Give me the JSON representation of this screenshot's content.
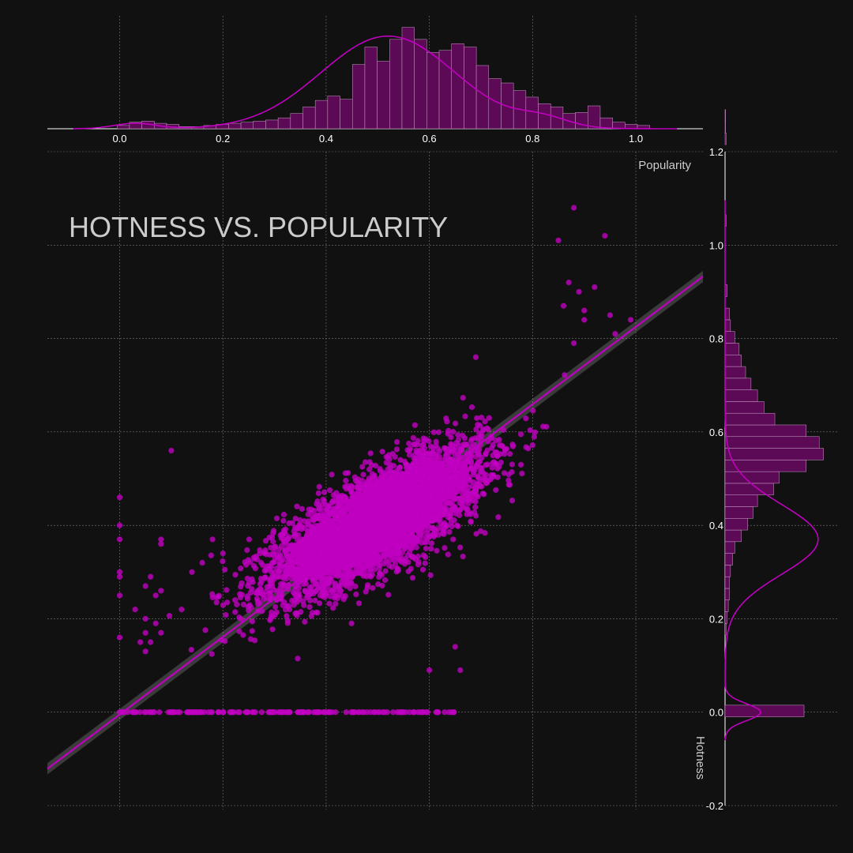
{
  "colors": {
    "background": "#111111",
    "accent": "#c000c0",
    "bar_fill": "#5c0a55",
    "grid": "#7a7a7a"
  },
  "chart_data": {
    "type": "scatter",
    "title": "HOTNESS VS. POPULARITY",
    "xlabel": "Popularity",
    "ylabel": "Hotness",
    "xlim": [
      -0.14,
      1.13
    ],
    "ylim": [
      -0.2,
      1.2
    ],
    "xticks": [
      "0.0",
      "0.2",
      "0.4",
      "0.6",
      "0.8",
      "1.0"
    ],
    "yticks": [
      "-0.2",
      "0.0",
      "0.2",
      "0.4",
      "0.6",
      "0.8",
      "1.0",
      "1.2"
    ],
    "grid": true,
    "regression": {
      "slope": 0.83,
      "intercept": -0.005
    },
    "cluster": {
      "center_x": 0.5,
      "center_y": 0.41,
      "sd_x": 0.1,
      "sd_y": 0.075,
      "correlation": 0.75,
      "count": 5000
    },
    "zero_hotness_points_x_range": [
      0.0,
      0.65
    ],
    "outliers": [
      [
        0.88,
        1.08
      ],
      [
        0.94,
        1.02
      ],
      [
        0.85,
        1.01
      ],
      [
        0.87,
        0.92
      ],
      [
        0.92,
        0.91
      ],
      [
        0.89,
        0.9
      ],
      [
        0.99,
        0.84
      ],
      [
        0.9,
        0.86
      ],
      [
        0.95,
        0.85
      ],
      [
        0.86,
        0.87
      ],
      [
        0.9,
        0.84
      ],
      [
        0.96,
        0.81
      ],
      [
        0.88,
        0.79
      ],
      [
        0.69,
        0.76
      ],
      [
        0.1,
        0.56
      ],
      [
        0.0,
        0.46
      ],
      [
        0.0,
        0.4
      ],
      [
        0.0,
        0.37
      ],
      [
        0.08,
        0.37
      ],
      [
        0.08,
        0.36
      ],
      [
        0.0,
        0.3
      ],
      [
        0.0,
        0.29
      ],
      [
        0.0,
        0.25
      ],
      [
        0.0,
        0.16
      ],
      [
        0.05,
        0.17
      ],
      [
        0.06,
        0.15
      ],
      [
        0.04,
        0.15
      ],
      [
        0.03,
        0.22
      ],
      [
        0.07,
        0.25
      ],
      [
        0.08,
        0.26
      ],
      [
        0.05,
        0.27
      ],
      [
        0.06,
        0.29
      ],
      [
        0.12,
        0.22
      ],
      [
        0.05,
        0.2
      ],
      [
        0.07,
        0.19
      ],
      [
        0.08,
        0.17
      ],
      [
        0.05,
        0.13
      ],
      [
        0.14,
        0.3
      ],
      [
        0.16,
        0.32
      ],
      [
        0.18,
        0.37
      ],
      [
        0.2,
        0.34
      ],
      [
        0.6,
        0.09
      ],
      [
        0.66,
        0.09
      ],
      [
        0.65,
        0.14
      ]
    ],
    "histogram_x": {
      "bin_start": -0.005,
      "bin_width": 0.024,
      "counts": [
        0.03,
        0.06,
        0.07,
        0.05,
        0.04,
        0.02,
        0.02,
        0.03,
        0.04,
        0.05,
        0.06,
        0.07,
        0.08,
        0.1,
        0.14,
        0.2,
        0.26,
        0.3,
        0.27,
        0.59,
        0.75,
        0.62,
        0.82,
        0.93,
        0.82,
        0.7,
        0.72,
        0.78,
        0.75,
        0.58,
        0.46,
        0.42,
        0.35,
        0.29,
        0.23,
        0.2,
        0.14,
        0.15,
        0.21,
        0.1,
        0.06,
        0.04,
        0.03
      ]
    },
    "histogram_y": {
      "bin_start": -0.01,
      "bin_width": 0.025,
      "counts": [
        0.73,
        0,
        0,
        0,
        0,
        0,
        0,
        0.01,
        0.02,
        0.03,
        0.04,
        0.04,
        0.05,
        0.07,
        0.09,
        0.15,
        0.21,
        0.26,
        0.3,
        0.45,
        0.5,
        0.75,
        0.91,
        0.87,
        0.75,
        0.46,
        0.36,
        0.3,
        0.24,
        0.19,
        0.15,
        0.13,
        0.09,
        0.05,
        0.04,
        0,
        0.02,
        0,
        0,
        0,
        0,
        0,
        0.01,
        0,
        0,
        0,
        0,
        0,
        0,
        0.01,
        0.005,
        0.005
      ]
    }
  }
}
